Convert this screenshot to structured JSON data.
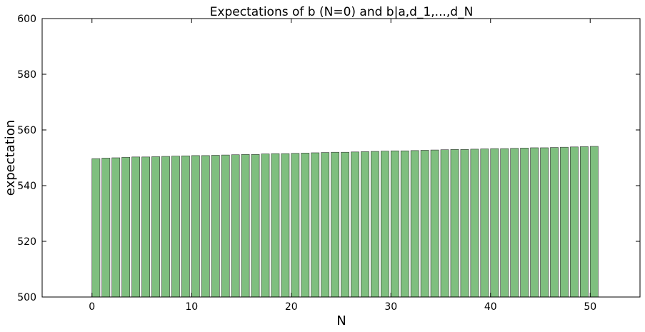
{
  "chart_data": {
    "type": "bar",
    "title": "Expectations of b (N=0) and b|a,d_1,...,d_N",
    "xlabel": "N",
    "ylabel": "expectation",
    "x": [
      0,
      1,
      2,
      3,
      4,
      5,
      6,
      7,
      8,
      9,
      10,
      11,
      12,
      13,
      14,
      15,
      16,
      17,
      18,
      19,
      20,
      21,
      22,
      23,
      24,
      25,
      26,
      27,
      28,
      29,
      30,
      31,
      32,
      33,
      34,
      35,
      36,
      37,
      38,
      39,
      40,
      41,
      42,
      43,
      44,
      45,
      46,
      47,
      48,
      49,
      50
    ],
    "values": [
      549.7,
      549.9,
      550.0,
      550.2,
      550.3,
      550.3,
      550.4,
      550.5,
      550.6,
      550.7,
      550.8,
      550.8,
      550.9,
      551.0,
      551.1,
      551.2,
      551.2,
      551.4,
      551.5,
      551.5,
      551.6,
      551.7,
      551.8,
      551.9,
      552.0,
      552.0,
      552.1,
      552.2,
      552.3,
      552.4,
      552.5,
      552.5,
      552.6,
      552.7,
      552.8,
      552.9,
      553.0,
      553.0,
      553.1,
      553.2,
      553.3,
      553.3,
      553.4,
      553.5,
      553.6,
      553.6,
      553.7,
      553.8,
      553.9,
      554.0,
      554.1
    ],
    "xlim": [
      -5,
      55
    ],
    "ylim": [
      500,
      600
    ],
    "xticks": [
      "0",
      "10",
      "20",
      "30",
      "40",
      "50"
    ],
    "yticks": [
      "500",
      "520",
      "540",
      "560",
      "580",
      "600"
    ],
    "bar_color": "#7fbf7f",
    "bar_edge_color": "#333333",
    "grid": false,
    "legend": "none"
  }
}
